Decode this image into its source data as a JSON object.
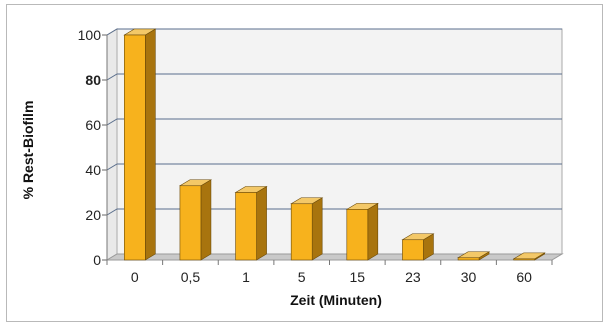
{
  "chart_data": {
    "type": "bar",
    "title": "",
    "xlabel": "Zeit (Minuten)",
    "ylabel": "% Rest-Biofilm",
    "categories": [
      "0",
      "0,5",
      "1",
      "5",
      "15",
      "23",
      "30",
      "60"
    ],
    "values": [
      100,
      33,
      30,
      25,
      22.5,
      9,
      1,
      0.5
    ],
    "ylim": [
      0,
      100
    ],
    "yticks": [
      0,
      20,
      40,
      60,
      80,
      100
    ],
    "ytick_labels": [
      "0",
      "20",
      "40",
      "60",
      "80",
      "100"
    ],
    "ytick_bold": [
      false,
      false,
      false,
      false,
      true,
      false
    ],
    "grid": true,
    "three_d": true,
    "colors": {
      "bar_front": "#f7b21d",
      "bar_side": "#a8740e",
      "bar_top": "#f3c868",
      "bar_edge": "#6b4a08",
      "grid": "#5a6e8c",
      "floor": "#c9c9c9",
      "wall": "#f3f3f3"
    }
  }
}
